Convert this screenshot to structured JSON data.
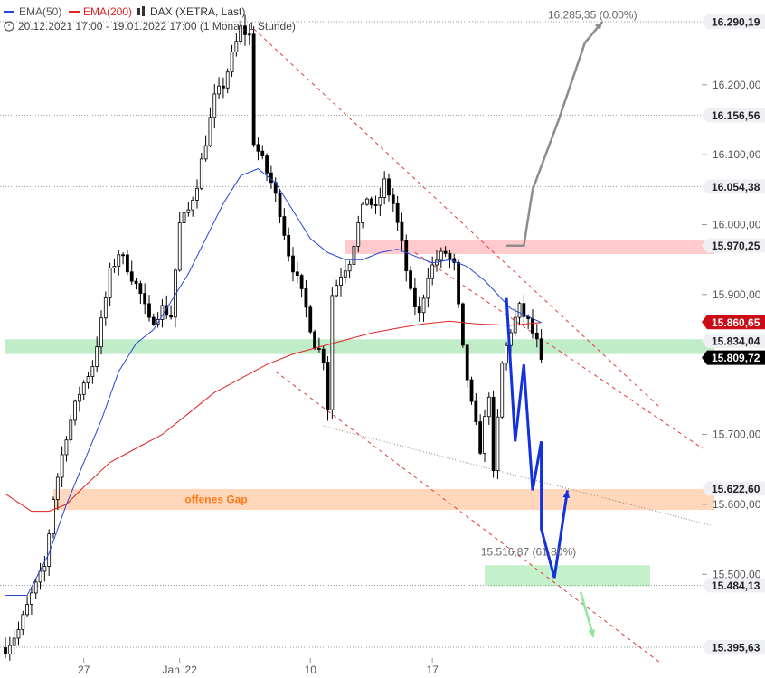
{
  "legend": {
    "ema50_label": "EMA(50)",
    "ema200_label": "EMA(200)",
    "instrument": "DAX (XETRA, Last)",
    "range_text": "20.12.2021 17:00 - 19.01.2022 17:00  (1 Monat, 1 Stunde)"
  },
  "colors": {
    "candle": "#000000",
    "ema50": "#2447d8",
    "ema200": "#e02424",
    "projection_blue": "#1431e0",
    "projection_gray": "#8c8c8c",
    "projection_green": "#90e8a0",
    "resistance_zone": "#ffc4c8",
    "support_zone": "#b9eac2",
    "gap_zone": "#ffd3b3",
    "target_zone": "#bfefc4",
    "channel": "#e23a3a",
    "tag_bg": "#eef0f3",
    "tag_price": "#000000",
    "tag_ema200": "#c90c16"
  },
  "chart_data": {
    "type": "candlestick",
    "title": "DAX (XETRA, Last)",
    "timeframe": "1 Stunde",
    "period": "20.12.2021 17:00 - 19.01.2022 17:00",
    "ylim": [
      15375,
      16300
    ],
    "y_ticks": [
      "16.200,00",
      "16.100,00",
      "16.000,00",
      "15.900,00",
      "15.700,00",
      "15.600,00",
      "15.500,00"
    ],
    "x_ticks": [
      {
        "label": "27",
        "index": 18
      },
      {
        "label": "Jan '22",
        "index": 40
      },
      {
        "label": "10",
        "index": 70
      },
      {
        "label": "17",
        "index": 98
      }
    ],
    "candles_count": 124,
    "path": [
      [
        0,
        15395
      ],
      [
        3,
        15420
      ],
      [
        6,
        15470
      ],
      [
        9,
        15510
      ],
      [
        11,
        15610
      ],
      [
        14,
        15700
      ],
      [
        17,
        15760
      ],
      [
        20,
        15800
      ],
      [
        22,
        15860
      ],
      [
        24,
        15930
      ],
      [
        26,
        15960
      ],
      [
        28,
        15940
      ],
      [
        31,
        15900
      ],
      [
        33,
        15860
      ],
      [
        36,
        15880
      ],
      [
        38,
        15870
      ],
      [
        40,
        16000
      ],
      [
        42,
        16020
      ],
      [
        44,
        16060
      ],
      [
        46,
        16120
      ],
      [
        48,
        16180
      ],
      [
        50,
        16200
      ],
      [
        52,
        16240
      ],
      [
        54,
        16280
      ],
      [
        56,
        16270
      ],
      [
        57,
        16120
      ],
      [
        59,
        16090
      ],
      [
        61,
        16060
      ],
      [
        63,
        16020
      ],
      [
        65,
        15960
      ],
      [
        67,
        15920
      ],
      [
        69,
        15880
      ],
      [
        71,
        15830
      ],
      [
        73,
        15810
      ],
      [
        74,
        15740
      ],
      [
        75,
        15900
      ],
      [
        77,
        15930
      ],
      [
        79,
        15950
      ],
      [
        81,
        16000
      ],
      [
        83,
        16040
      ],
      [
        85,
        16020
      ],
      [
        87,
        16060
      ],
      [
        89,
        16030
      ],
      [
        91,
        15970
      ],
      [
        93,
        15900
      ],
      [
        95,
        15870
      ],
      [
        97,
        15930
      ],
      [
        99,
        15950
      ],
      [
        101,
        15960
      ],
      [
        103,
        15940
      ],
      [
        105,
        15820
      ],
      [
        107,
        15740
      ],
      [
        109,
        15680
      ],
      [
        111,
        15760
      ],
      [
        112,
        15640
      ],
      [
        114,
        15800
      ],
      [
        116,
        15850
      ],
      [
        118,
        15880
      ],
      [
        120,
        15860
      ],
      [
        122,
        15830
      ],
      [
        123,
        15800
      ]
    ],
    "ema50": [
      [
        0,
        15470
      ],
      [
        5,
        15470
      ],
      [
        10,
        15530
      ],
      [
        14,
        15600
      ],
      [
        18,
        15660
      ],
      [
        22,
        15720
      ],
      [
        26,
        15790
      ],
      [
        30,
        15830
      ],
      [
        34,
        15850
      ],
      [
        38,
        15890
      ],
      [
        42,
        15930
      ],
      [
        46,
        15980
      ],
      [
        50,
        16030
      ],
      [
        54,
        16070
      ],
      [
        58,
        16080
      ],
      [
        62,
        16060
      ],
      [
        66,
        16020
      ],
      [
        70,
        15980
      ],
      [
        74,
        15960
      ],
      [
        78,
        15950
      ],
      [
        82,
        15950
      ],
      [
        86,
        15960
      ],
      [
        90,
        15965
      ],
      [
        94,
        15955
      ],
      [
        98,
        15945
      ],
      [
        102,
        15950
      ],
      [
        106,
        15940
      ],
      [
        110,
        15920
      ],
      [
        116,
        15880
      ],
      [
        123,
        15860
      ]
    ],
    "ema200": [
      [
        0,
        15615
      ],
      [
        6,
        15590
      ],
      [
        10,
        15590
      ],
      [
        14,
        15600
      ],
      [
        18,
        15625
      ],
      [
        24,
        15660
      ],
      [
        30,
        15680
      ],
      [
        36,
        15700
      ],
      [
        42,
        15730
      ],
      [
        48,
        15760
      ],
      [
        54,
        15780
      ],
      [
        60,
        15800
      ],
      [
        66,
        15815
      ],
      [
        72,
        15825
      ],
      [
        78,
        15835
      ],
      [
        84,
        15845
      ],
      [
        90,
        15852
      ],
      [
        96,
        15858
      ],
      [
        102,
        15862
      ],
      [
        108,
        15858
      ],
      [
        116,
        15856
      ],
      [
        123,
        15860
      ]
    ],
    "price_tags": [
      {
        "label": "16.290,19",
        "value": 16290.19,
        "kind": "price"
      },
      {
        "label": "16.156,56",
        "value": 16156.56,
        "kind": "price"
      },
      {
        "label": "16.054,38",
        "value": 16054.38,
        "kind": "price"
      },
      {
        "label": "15.970,25",
        "value": 15970.25,
        "kind": "price"
      },
      {
        "label": "15.860,65",
        "value": 15860.65,
        "kind": "ema200"
      },
      {
        "label": "15.834,04",
        "value": 15834.04,
        "kind": "price"
      },
      {
        "label": "15.809,72",
        "value": 15809.72,
        "kind": "last"
      },
      {
        "label": "15.622,60",
        "value": 15622.6,
        "kind": "price"
      },
      {
        "label": "15.484,13",
        "value": 15484.13,
        "kind": "price"
      },
      {
        "label": "15.395,63",
        "value": 15395.63,
        "kind": "price"
      }
    ],
    "reference_lines": [
      16290.19,
      16156.56,
      16054.38,
      15484.13,
      15395.63
    ],
    "zones": [
      {
        "name": "resistance",
        "from_index": 78,
        "from": 15958,
        "to": 15978
      },
      {
        "name": "support",
        "from_index": 0,
        "from": 15815,
        "to": 15836
      },
      {
        "name": "gap",
        "label": "offenes Gap",
        "from_index": 11,
        "from": 15592,
        "to": 15622
      },
      {
        "name": "target",
        "from_index": 110,
        "to_index": 148,
        "from": 15483,
        "to": 15513
      }
    ],
    "annotations": [
      {
        "text": "16.285,35 (0.00%)",
        "index": 145,
        "value": 16291
      },
      {
        "text": "15.516,87 (61.80%)",
        "index": 131,
        "value": 15523
      }
    ],
    "channel_lines": [
      {
        "from": [
          57,
          16280
        ],
        "to": [
          150,
          15740
        ]
      },
      {
        "from": [
          94,
          15960
        ],
        "to": [
          160,
          15680
        ]
      },
      {
        "from": [
          62,
          15790
        ],
        "to": [
          150,
          15375
        ]
      }
    ],
    "trend_line": {
      "from": [
        73,
        15712
      ],
      "to": [
        162,
        15570
      ]
    },
    "projections": [
      {
        "color": "gray",
        "points": [
          [
            115,
            15970
          ],
          [
            119,
            15970
          ],
          [
            121,
            16050
          ],
          [
            127,
            16150
          ],
          [
            133,
            16260
          ],
          [
            137,
            16290
          ]
        ]
      },
      {
        "color": "blue",
        "points": [
          [
            115,
            15895
          ],
          [
            117,
            15690
          ],
          [
            119,
            15800
          ],
          [
            121,
            15620
          ],
          [
            123,
            15690
          ],
          [
            123,
            15565
          ],
          [
            126,
            15495
          ],
          [
            129,
            15620
          ]
        ]
      },
      {
        "color": "green",
        "points": [
          [
            132,
            15475
          ],
          [
            135,
            15410
          ]
        ]
      }
    ]
  }
}
